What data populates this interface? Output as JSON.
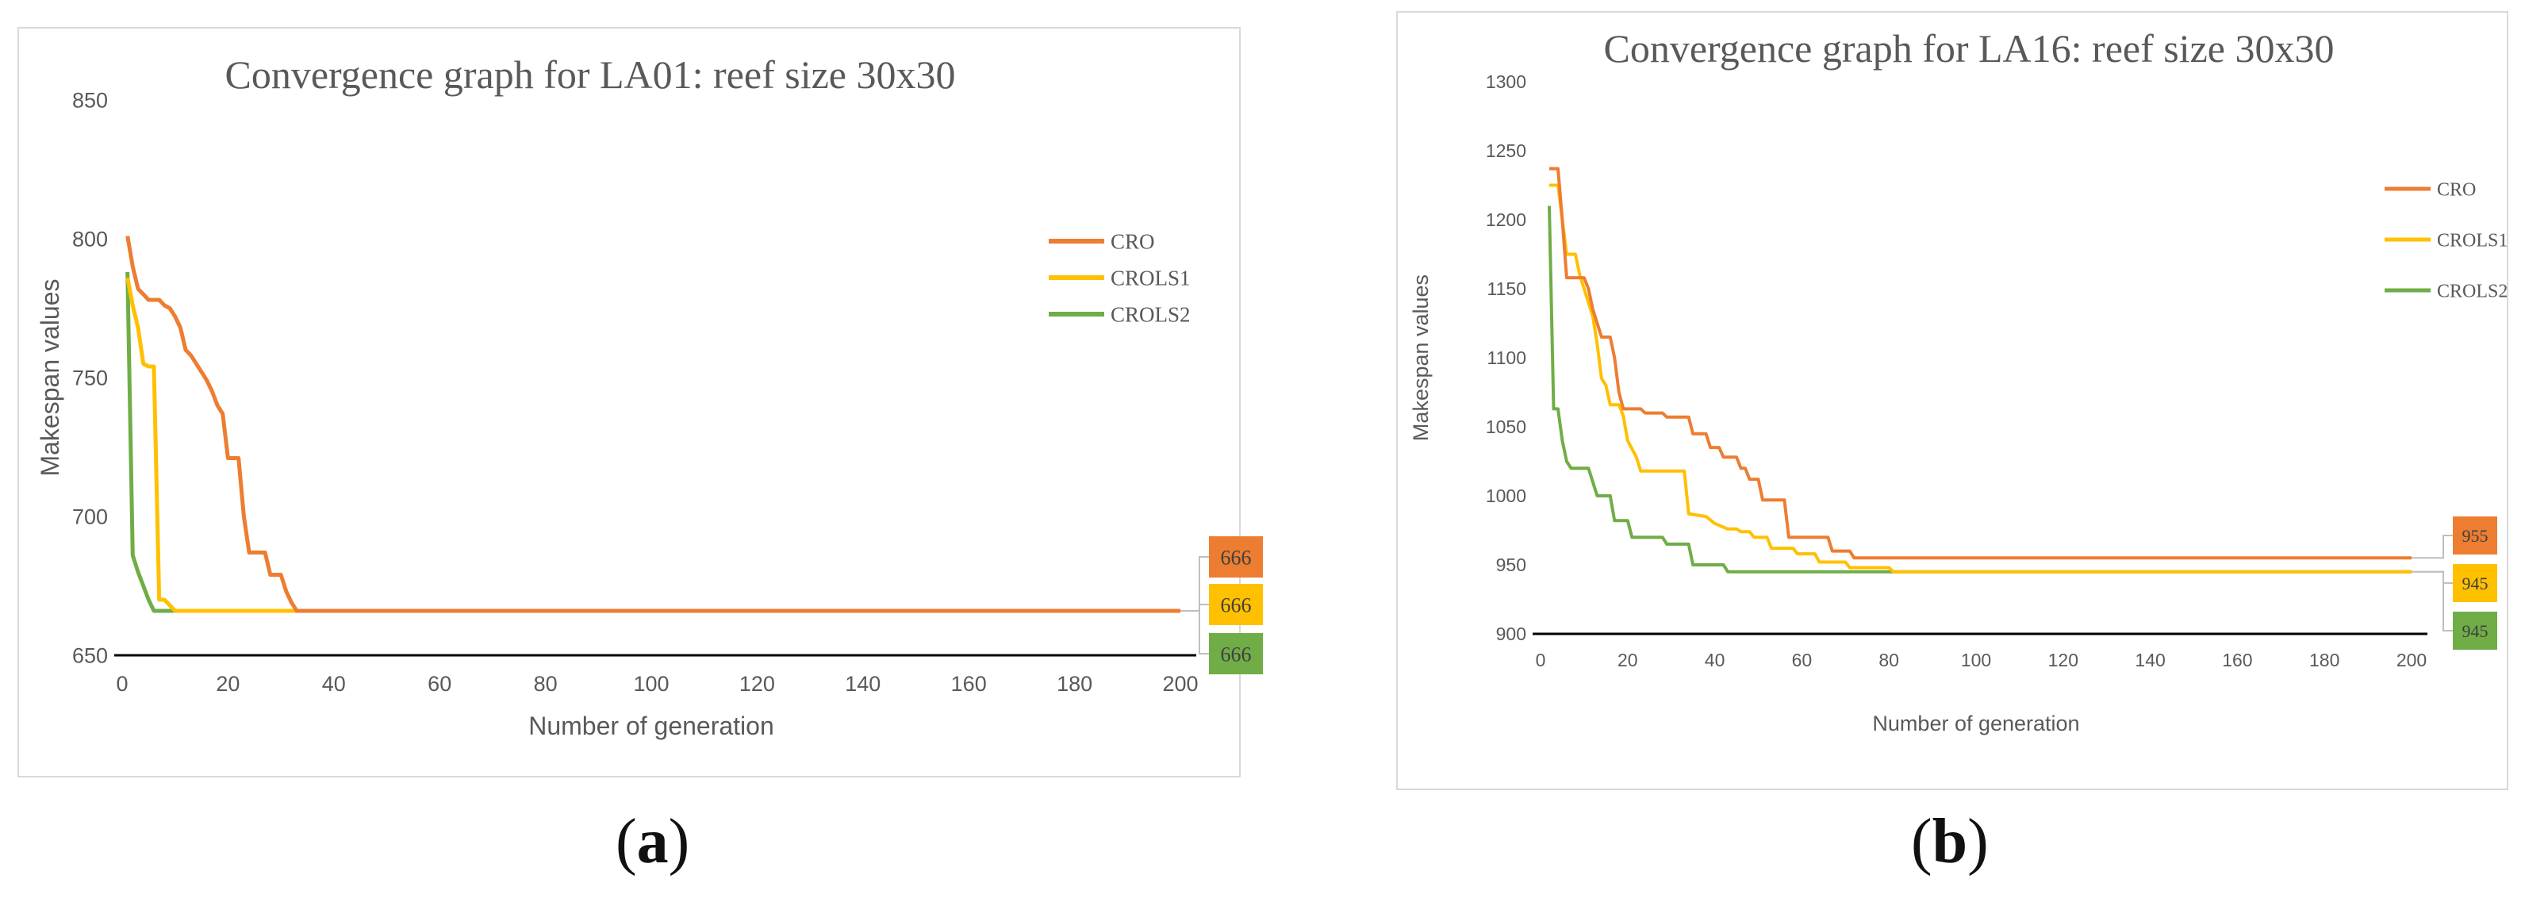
{
  "panels": {
    "a": {
      "label": "a"
    },
    "b": {
      "label": "b"
    }
  },
  "colors": {
    "CRO": "#ED7D31",
    "CROLS1": "#FFC000",
    "CROLS2": "#70AD47",
    "axis": "#000000",
    "text": "#595959"
  },
  "chart_data": [
    {
      "type": "line",
      "panel": "a",
      "title": "Convergence graph for LA01: reef size 30x30",
      "xlabel": "Number of generation",
      "ylabel": "Makespan values",
      "xlim": [
        0,
        200
      ],
      "ylim": [
        650,
        850
      ],
      "xticks": [
        0,
        20,
        40,
        60,
        80,
        100,
        120,
        140,
        160,
        180,
        200
      ],
      "yticks": [
        650,
        700,
        750,
        800,
        850
      ],
      "legend_position": "right",
      "series": [
        {
          "name": "CRO",
          "end_label": "666",
          "points": [
            [
              1,
              801
            ],
            [
              2,
              790
            ],
            [
              3,
              782
            ],
            [
              4,
              780
            ],
            [
              5,
              778
            ],
            [
              7,
              778
            ],
            [
              8,
              776
            ],
            [
              9,
              775
            ],
            [
              10,
              772
            ],
            [
              11,
              768
            ],
            [
              12,
              760
            ],
            [
              13,
              758
            ],
            [
              14,
              755
            ],
            [
              15,
              752
            ],
            [
              16,
              749
            ],
            [
              17,
              745
            ],
            [
              18,
              740
            ],
            [
              19,
              737
            ],
            [
              20,
              721
            ],
            [
              22,
              721
            ],
            [
              23,
              700
            ],
            [
              24,
              687
            ],
            [
              27,
              687
            ],
            [
              28,
              679
            ],
            [
              30,
              679
            ],
            [
              31,
              673
            ],
            [
              32,
              669
            ],
            [
              33,
              666
            ],
            [
              200,
              666
            ]
          ]
        },
        {
          "name": "CROLS1",
          "end_label": "666",
          "points": [
            [
              1,
              786
            ],
            [
              2,
              776
            ],
            [
              3,
              768
            ],
            [
              4,
              755
            ],
            [
              5,
              754
            ],
            [
              6,
              754
            ],
            [
              7,
              670
            ],
            [
              8,
              670
            ],
            [
              9,
              668
            ],
            [
              10,
              666
            ],
            [
              200,
              666
            ]
          ]
        },
        {
          "name": "CROLS2",
          "end_label": "666",
          "points": [
            [
              1,
              788
            ],
            [
              2,
              686
            ],
            [
              3,
              680
            ],
            [
              4,
              675
            ],
            [
              5,
              670
            ],
            [
              6,
              666
            ],
            [
              200,
              666
            ]
          ]
        }
      ]
    },
    {
      "type": "line",
      "panel": "b",
      "title": "Convergence graph for LA16: reef size 30x30",
      "xlabel": "Number of generation",
      "ylabel": "Makespan values",
      "xlim": [
        0,
        200
      ],
      "ylim": [
        900,
        1300
      ],
      "xticks": [
        0,
        20,
        40,
        60,
        80,
        100,
        120,
        140,
        160,
        180,
        200
      ],
      "yticks": [
        900,
        950,
        1000,
        1050,
        1100,
        1150,
        1200,
        1250,
        1300
      ],
      "legend_position": "right",
      "series": [
        {
          "name": "CRO",
          "end_label": "955",
          "points": [
            [
              2,
              1237
            ],
            [
              4,
              1237
            ],
            [
              5,
              1200
            ],
            [
              6,
              1158
            ],
            [
              10,
              1158
            ],
            [
              11,
              1150
            ],
            [
              12,
              1135
            ],
            [
              14,
              1115
            ],
            [
              16,
              1115
            ],
            [
              17,
              1100
            ],
            [
              18,
              1075
            ],
            [
              19,
              1063
            ],
            [
              23,
              1063
            ],
            [
              24,
              1060
            ],
            [
              28,
              1060
            ],
            [
              29,
              1057
            ],
            [
              34,
              1057
            ],
            [
              35,
              1045
            ],
            [
              38,
              1045
            ],
            [
              39,
              1035
            ],
            [
              41,
              1035
            ],
            [
              42,
              1028
            ],
            [
              45,
              1028
            ],
            [
              46,
              1020
            ],
            [
              47,
              1020
            ],
            [
              48,
              1012
            ],
            [
              50,
              1012
            ],
            [
              51,
              997
            ],
            [
              56,
              997
            ],
            [
              57,
              970
            ],
            [
              66,
              970
            ],
            [
              67,
              960
            ],
            [
              71,
              960
            ],
            [
              72,
              955
            ],
            [
              200,
              955
            ]
          ]
        },
        {
          "name": "CROLS1",
          "end_label": "945",
          "points": [
            [
              2,
              1225
            ],
            [
              4,
              1225
            ],
            [
              5,
              1200
            ],
            [
              6,
              1175
            ],
            [
              8,
              1175
            ],
            [
              9,
              1160
            ],
            [
              10,
              1150
            ],
            [
              12,
              1130
            ],
            [
              13,
              1110
            ],
            [
              14,
              1085
            ],
            [
              15,
              1080
            ],
            [
              16,
              1066
            ],
            [
              18,
              1066
            ],
            [
              19,
              1058
            ],
            [
              20,
              1040
            ],
            [
              22,
              1028
            ],
            [
              23,
              1018
            ],
            [
              33,
              1018
            ],
            [
              34,
              987
            ],
            [
              38,
              985
            ],
            [
              40,
              980
            ],
            [
              43,
              976
            ],
            [
              45,
              976
            ],
            [
              46,
              974
            ],
            [
              48,
              974
            ],
            [
              49,
              970
            ],
            [
              52,
              970
            ],
            [
              53,
              962
            ],
            [
              58,
              962
            ],
            [
              59,
              958
            ],
            [
              63,
              958
            ],
            [
              64,
              952
            ],
            [
              70,
              952
            ],
            [
              71,
              948
            ],
            [
              80,
              948
            ],
            [
              81,
              945
            ],
            [
              200,
              945
            ]
          ]
        },
        {
          "name": "CROLS2",
          "end_label": "945",
          "points": [
            [
              2,
              1210
            ],
            [
              3,
              1063
            ],
            [
              4,
              1063
            ],
            [
              5,
              1040
            ],
            [
              6,
              1025
            ],
            [
              7,
              1020
            ],
            [
              11,
              1020
            ],
            [
              12,
              1010
            ],
            [
              13,
              1000
            ],
            [
              16,
              1000
            ],
            [
              17,
              982
            ],
            [
              20,
              982
            ],
            [
              21,
              970
            ],
            [
              28,
              970
            ],
            [
              29,
              965
            ],
            [
              34,
              965
            ],
            [
              35,
              950
            ],
            [
              42,
              950
            ],
            [
              43,
              945
            ],
            [
              200,
              945
            ]
          ]
        }
      ]
    }
  ]
}
